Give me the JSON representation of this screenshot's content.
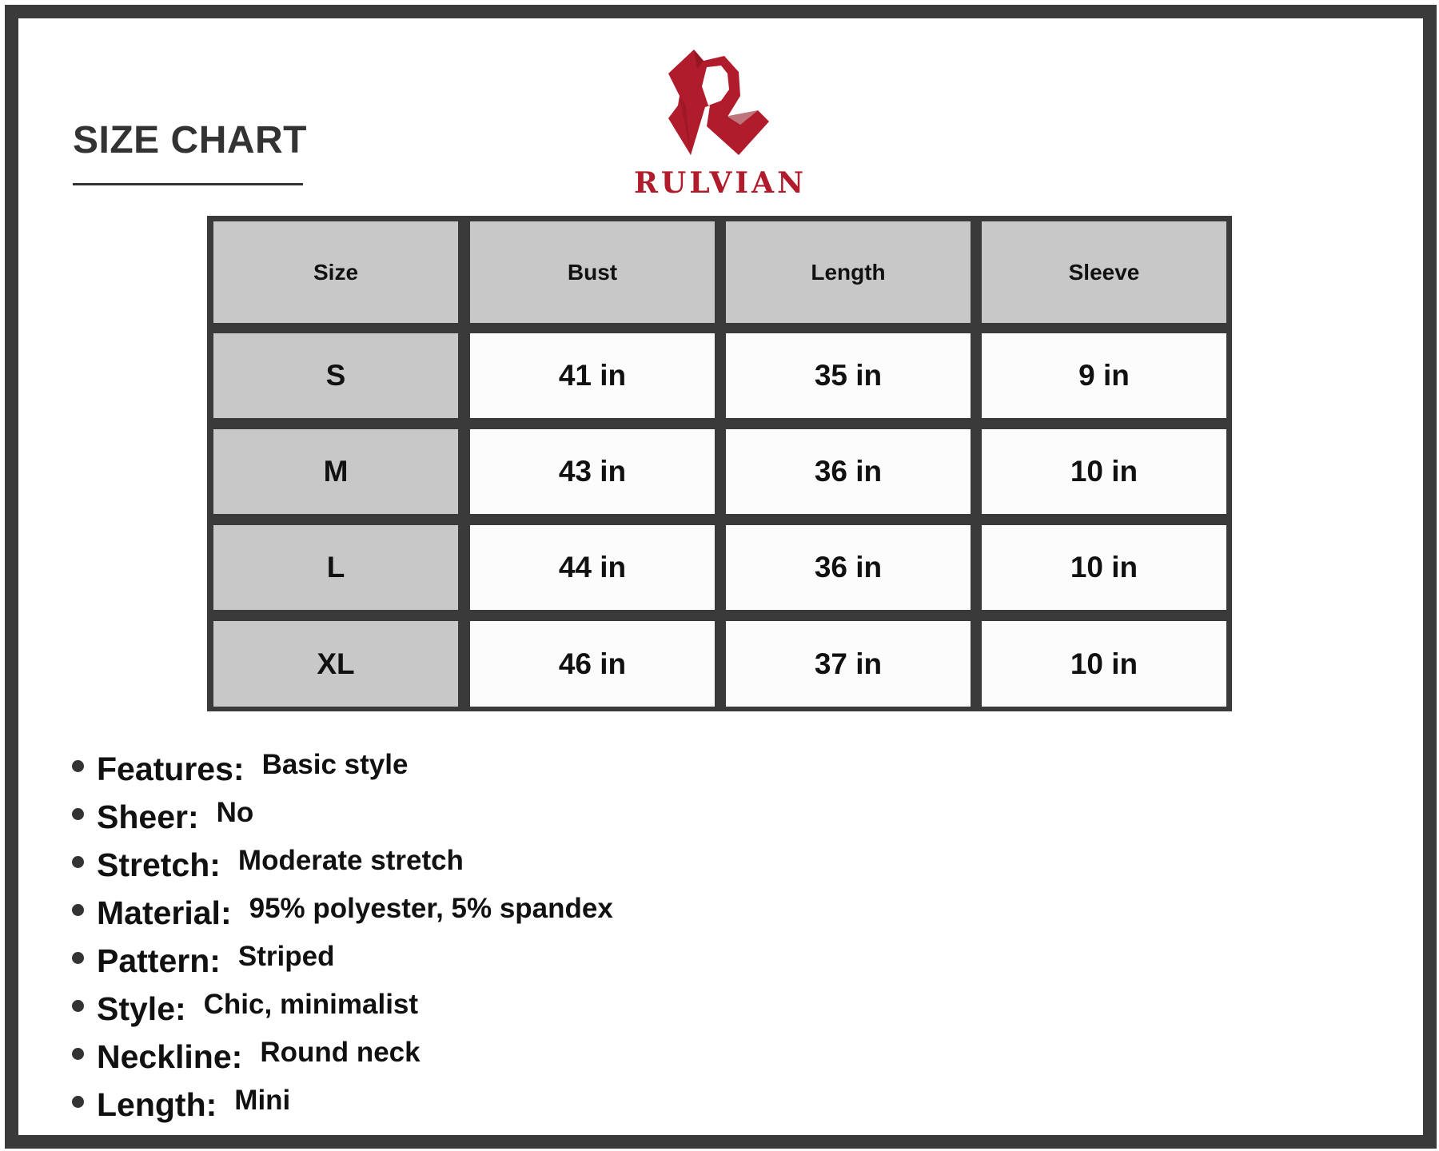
{
  "header": {
    "title": "SIZE CHART",
    "brand": "RULVIAN"
  },
  "colors": {
    "frame": "#3a3a3a",
    "header_cell": "#c8c8c8",
    "brand_red": "#b01c2b"
  },
  "table": {
    "columns": [
      "Size",
      "Bust",
      "Length",
      "Sleeve"
    ],
    "rows": [
      [
        "S",
        "41 in",
        "35 in",
        "9 in"
      ],
      [
        "M",
        "43 in",
        "36 in",
        "10 in"
      ],
      [
        "L",
        "44 in",
        "36 in",
        "10 in"
      ],
      [
        "XL",
        "46 in",
        "37 in",
        "10 in"
      ]
    ]
  },
  "specs": [
    {
      "label": "Features:",
      "value": "Basic style"
    },
    {
      "label": "Sheer:",
      "value": "No"
    },
    {
      "label": "Stretch:",
      "value": "Moderate stretch"
    },
    {
      "label": "Material:",
      "value": "95% polyester, 5% spandex"
    },
    {
      "label": "Pattern:",
      "value": "Striped"
    },
    {
      "label": "Style:",
      "value": "Chic, minimalist"
    },
    {
      "label": "Neckline:",
      "value": "Round neck"
    },
    {
      "label": "Length:",
      "value": "Mini"
    }
  ]
}
